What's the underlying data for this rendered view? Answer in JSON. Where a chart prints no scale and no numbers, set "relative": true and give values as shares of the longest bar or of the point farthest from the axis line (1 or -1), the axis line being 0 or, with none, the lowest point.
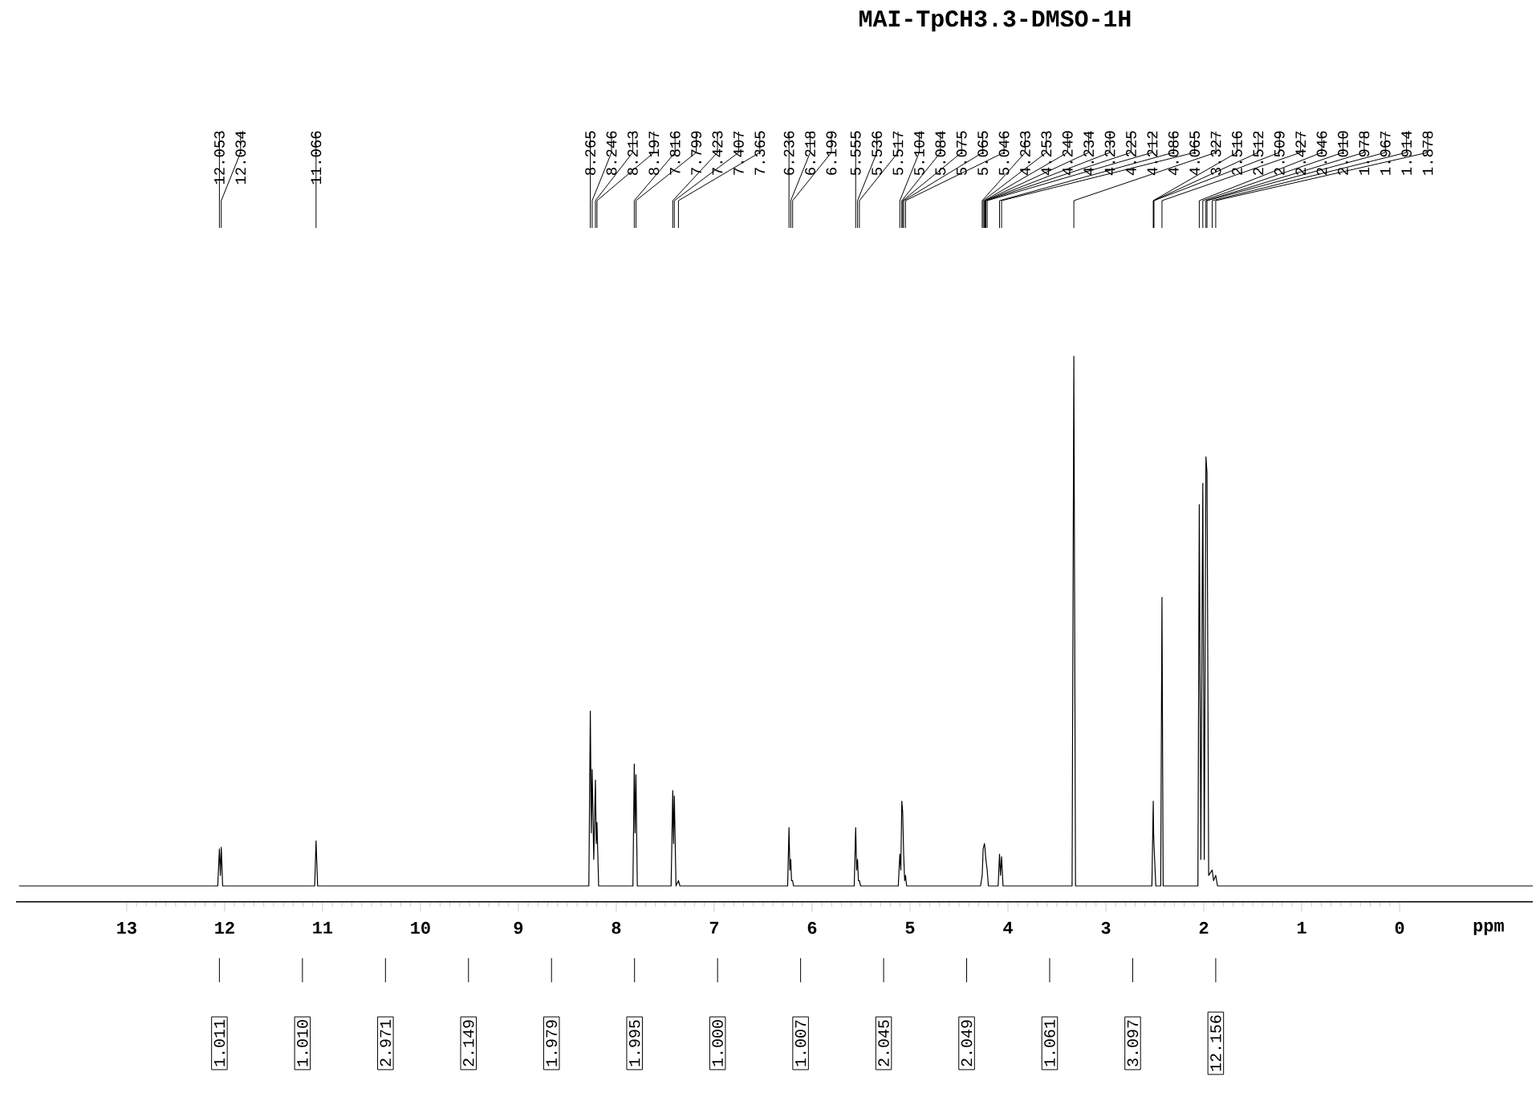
{
  "chart_data": {
    "type": "line",
    "title": "MAI-TpCH3.3-DMSO-1H",
    "xlabel": "ppm",
    "relative": true,
    "color": "#000000",
    "xlim": [
      14.13,
      -1.36
    ],
    "xticks": [
      13,
      12,
      11,
      10,
      9,
      8,
      7,
      6,
      5,
      4,
      3,
      2,
      1,
      0
    ],
    "x": [
      14.1,
      12.07,
      12.053,
      12.043,
      12.034,
      12.02,
      11.08,
      11.066,
      11.05,
      8.28,
      8.265,
      8.255,
      8.246,
      8.23,
      8.213,
      8.205,
      8.197,
      8.18,
      7.83,
      7.816,
      7.808,
      7.799,
      7.785,
      7.44,
      7.423,
      7.415,
      7.407,
      7.39,
      7.365,
      7.35,
      6.25,
      6.236,
      6.227,
      6.218,
      6.21,
      6.199,
      6.19,
      5.57,
      5.555,
      5.545,
      5.536,
      5.527,
      5.517,
      5.505,
      5.12,
      5.104,
      5.094,
      5.084,
      5.075,
      5.065,
      5.055,
      5.046,
      5.035,
      4.28,
      4.263,
      4.253,
      4.24,
      4.234,
      4.23,
      4.225,
      4.212,
      4.2,
      4.1,
      4.086,
      4.076,
      4.065,
      4.05,
      3.345,
      3.327,
      3.31,
      2.53,
      2.516,
      2.512,
      2.509,
      2.49,
      2.44,
      2.427,
      2.415,
      2.06,
      2.046,
      2.03,
      2.01,
      1.995,
      1.978,
      1.967,
      1.95,
      1.914,
      1.9,
      1.878,
      1.86,
      -1.36
    ],
    "values": [
      0,
      0,
      0.07,
      0.02,
      0.073,
      0,
      0,
      0.085,
      0,
      0,
      0.33,
      0.1,
      0.22,
      0.05,
      0.2,
      0.08,
      0.12,
      0,
      0,
      0.23,
      0.1,
      0.21,
      0,
      0,
      0.18,
      0.08,
      0.17,
      0,
      0.01,
      0,
      0,
      0.11,
      0.03,
      0.05,
      0.01,
      0.01,
      0,
      0,
      0.11,
      0.03,
      0.05,
      0.01,
      0.01,
      0,
      0,
      0.06,
      0.03,
      0.16,
      0.14,
      0.06,
      0.01,
      0.02,
      0,
      0,
      0.02,
      0.07,
      0.08,
      0.07,
      0.06,
      0.05,
      0.03,
      0,
      0,
      0.06,
      0.02,
      0.055,
      0,
      0,
      1.0,
      0,
      0,
      0.16,
      0.1,
      0.08,
      0,
      0,
      0.545,
      0,
      0,
      0.72,
      0.05,
      0.76,
      0.05,
      0.81,
      0.78,
      0.02,
      0.03,
      0.01,
      0.02,
      0,
      0
    ],
    "annotations": [
      {
        "text": "12.053",
        "x": 12.053
      },
      {
        "text": "12.034",
        "x": 12.034
      },
      {
        "text": "11.066",
        "x": 11.066
      },
      {
        "text": "8.265",
        "x": 8.265
      },
      {
        "text": "8.246",
        "x": 8.246
      },
      {
        "text": "8.213",
        "x": 8.213
      },
      {
        "text": "8.197",
        "x": 8.197
      },
      {
        "text": "7.816",
        "x": 7.816
      },
      {
        "text": "7.799",
        "x": 7.799
      },
      {
        "text": "7.423",
        "x": 7.423
      },
      {
        "text": "7.407",
        "x": 7.407
      },
      {
        "text": "7.365",
        "x": 7.365
      },
      {
        "text": "6.236",
        "x": 6.236
      },
      {
        "text": "6.218",
        "x": 6.218
      },
      {
        "text": "6.199",
        "x": 6.199
      },
      {
        "text": "5.555",
        "x": 5.555
      },
      {
        "text": "5.536",
        "x": 5.536
      },
      {
        "text": "5.517",
        "x": 5.517
      },
      {
        "text": "5.104",
        "x": 5.104
      },
      {
        "text": "5.084",
        "x": 5.084
      },
      {
        "text": "5.075",
        "x": 5.075
      },
      {
        "text": "5.065",
        "x": 5.065
      },
      {
        "text": "5.046",
        "x": 5.046
      },
      {
        "text": "4.263",
        "x": 4.263
      },
      {
        "text": "4.253",
        "x": 4.253
      },
      {
        "text": "4.240",
        "x": 4.24
      },
      {
        "text": "4.234",
        "x": 4.234
      },
      {
        "text": "4.230",
        "x": 4.23
      },
      {
        "text": "4.225",
        "x": 4.225
      },
      {
        "text": "4.212",
        "x": 4.212
      },
      {
        "text": "4.086",
        "x": 4.086
      },
      {
        "text": "4.065",
        "x": 4.065
      },
      {
        "text": "3.327",
        "x": 3.327
      },
      {
        "text": "2.516",
        "x": 2.516
      },
      {
        "text": "2.512",
        "x": 2.512
      },
      {
        "text": "2.509",
        "x": 2.509
      },
      {
        "text": "2.427",
        "x": 2.427
      },
      {
        "text": "2.046",
        "x": 2.046
      },
      {
        "text": "2.010",
        "x": 2.01
      },
      {
        "text": "1.978",
        "x": 1.978
      },
      {
        "text": "1.967",
        "x": 1.967
      },
      {
        "text": "1.914",
        "x": 1.914
      },
      {
        "text": "1.878",
        "x": 1.878
      },
      "1.011",
      "1.010",
      "2.971",
      "2.149",
      "1.979",
      "1.995",
      "1.000",
      "1.007",
      "2.045",
      "2.049",
      "1.061",
      "3.097",
      "12.156"
    ]
  }
}
